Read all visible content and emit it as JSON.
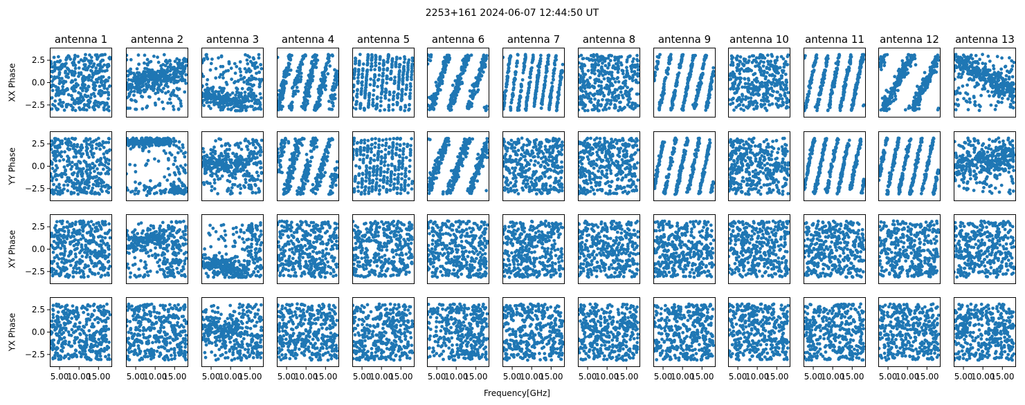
{
  "figure": {
    "title": "2253+161 2024-06-07 12:44:50 UT",
    "xlabel": "Frequency[GHz]"
  },
  "chart_data": {
    "type": "scatter",
    "title": "2253+161 2024-06-07 12:44:50 UT",
    "xlabel": "Frequency[GHz]",
    "xlim": [
      2.5,
      18.5
    ],
    "ylim": [
      -3.9,
      3.9
    ],
    "x_ticks": [
      5.0,
      10.0,
      15.0
    ],
    "x_tick_labels": [
      "5.00",
      "10.00",
      "15.00"
    ],
    "y_ticks": [
      -2.5,
      0.0,
      2.5
    ],
    "y_tick_labels": [
      "−2.5",
      "0.0",
      "2.5"
    ],
    "columns": [
      "antenna 1",
      "antenna 2",
      "antenna 3",
      "antenna 4",
      "antenna 5",
      "antenna 6",
      "antenna 7",
      "antenna 8",
      "antenna 9",
      "antenna 10",
      "antenna 11",
      "antenna 12",
      "antenna 13"
    ],
    "rows": [
      "XX Phase",
      "YY Phase",
      "XY Phase",
      "YX Phase"
    ],
    "marker_color": "#1f77b4",
    "points_per_panel": 380,
    "frequency_range_ghz": [
      2.6,
      18.0
    ],
    "phase_range_rad": [
      -3.14159,
      3.14159
    ],
    "panel_patterns": [
      [
        "random",
        "cluster-low-rise",
        "cluster-low",
        "bands-diagonal",
        "bands-vertical",
        "wrap-rising",
        "stripes-steep",
        "random",
        "stripes-diag",
        "random",
        "stripes-diag",
        "wrap-rising",
        "cluster-high-fall"
      ],
      [
        "random",
        "cluster-high-split",
        "cluster-mid",
        "bands-diagonal",
        "stripes-vertical",
        "wrap-rising",
        "random",
        "random",
        "stripes-diag",
        "random",
        "stripes-diag",
        "stripes-diag",
        "cluster-low-rise"
      ],
      [
        "random",
        "cluster-mid-rise",
        "cluster-low",
        "random",
        "random",
        "random",
        "random",
        "random",
        "random",
        "random",
        "random",
        "random",
        "random"
      ],
      [
        "random",
        "random",
        "cluster-low-center",
        "random",
        "random",
        "random",
        "random",
        "random",
        "random",
        "random",
        "random",
        "random",
        "random"
      ]
    ]
  }
}
